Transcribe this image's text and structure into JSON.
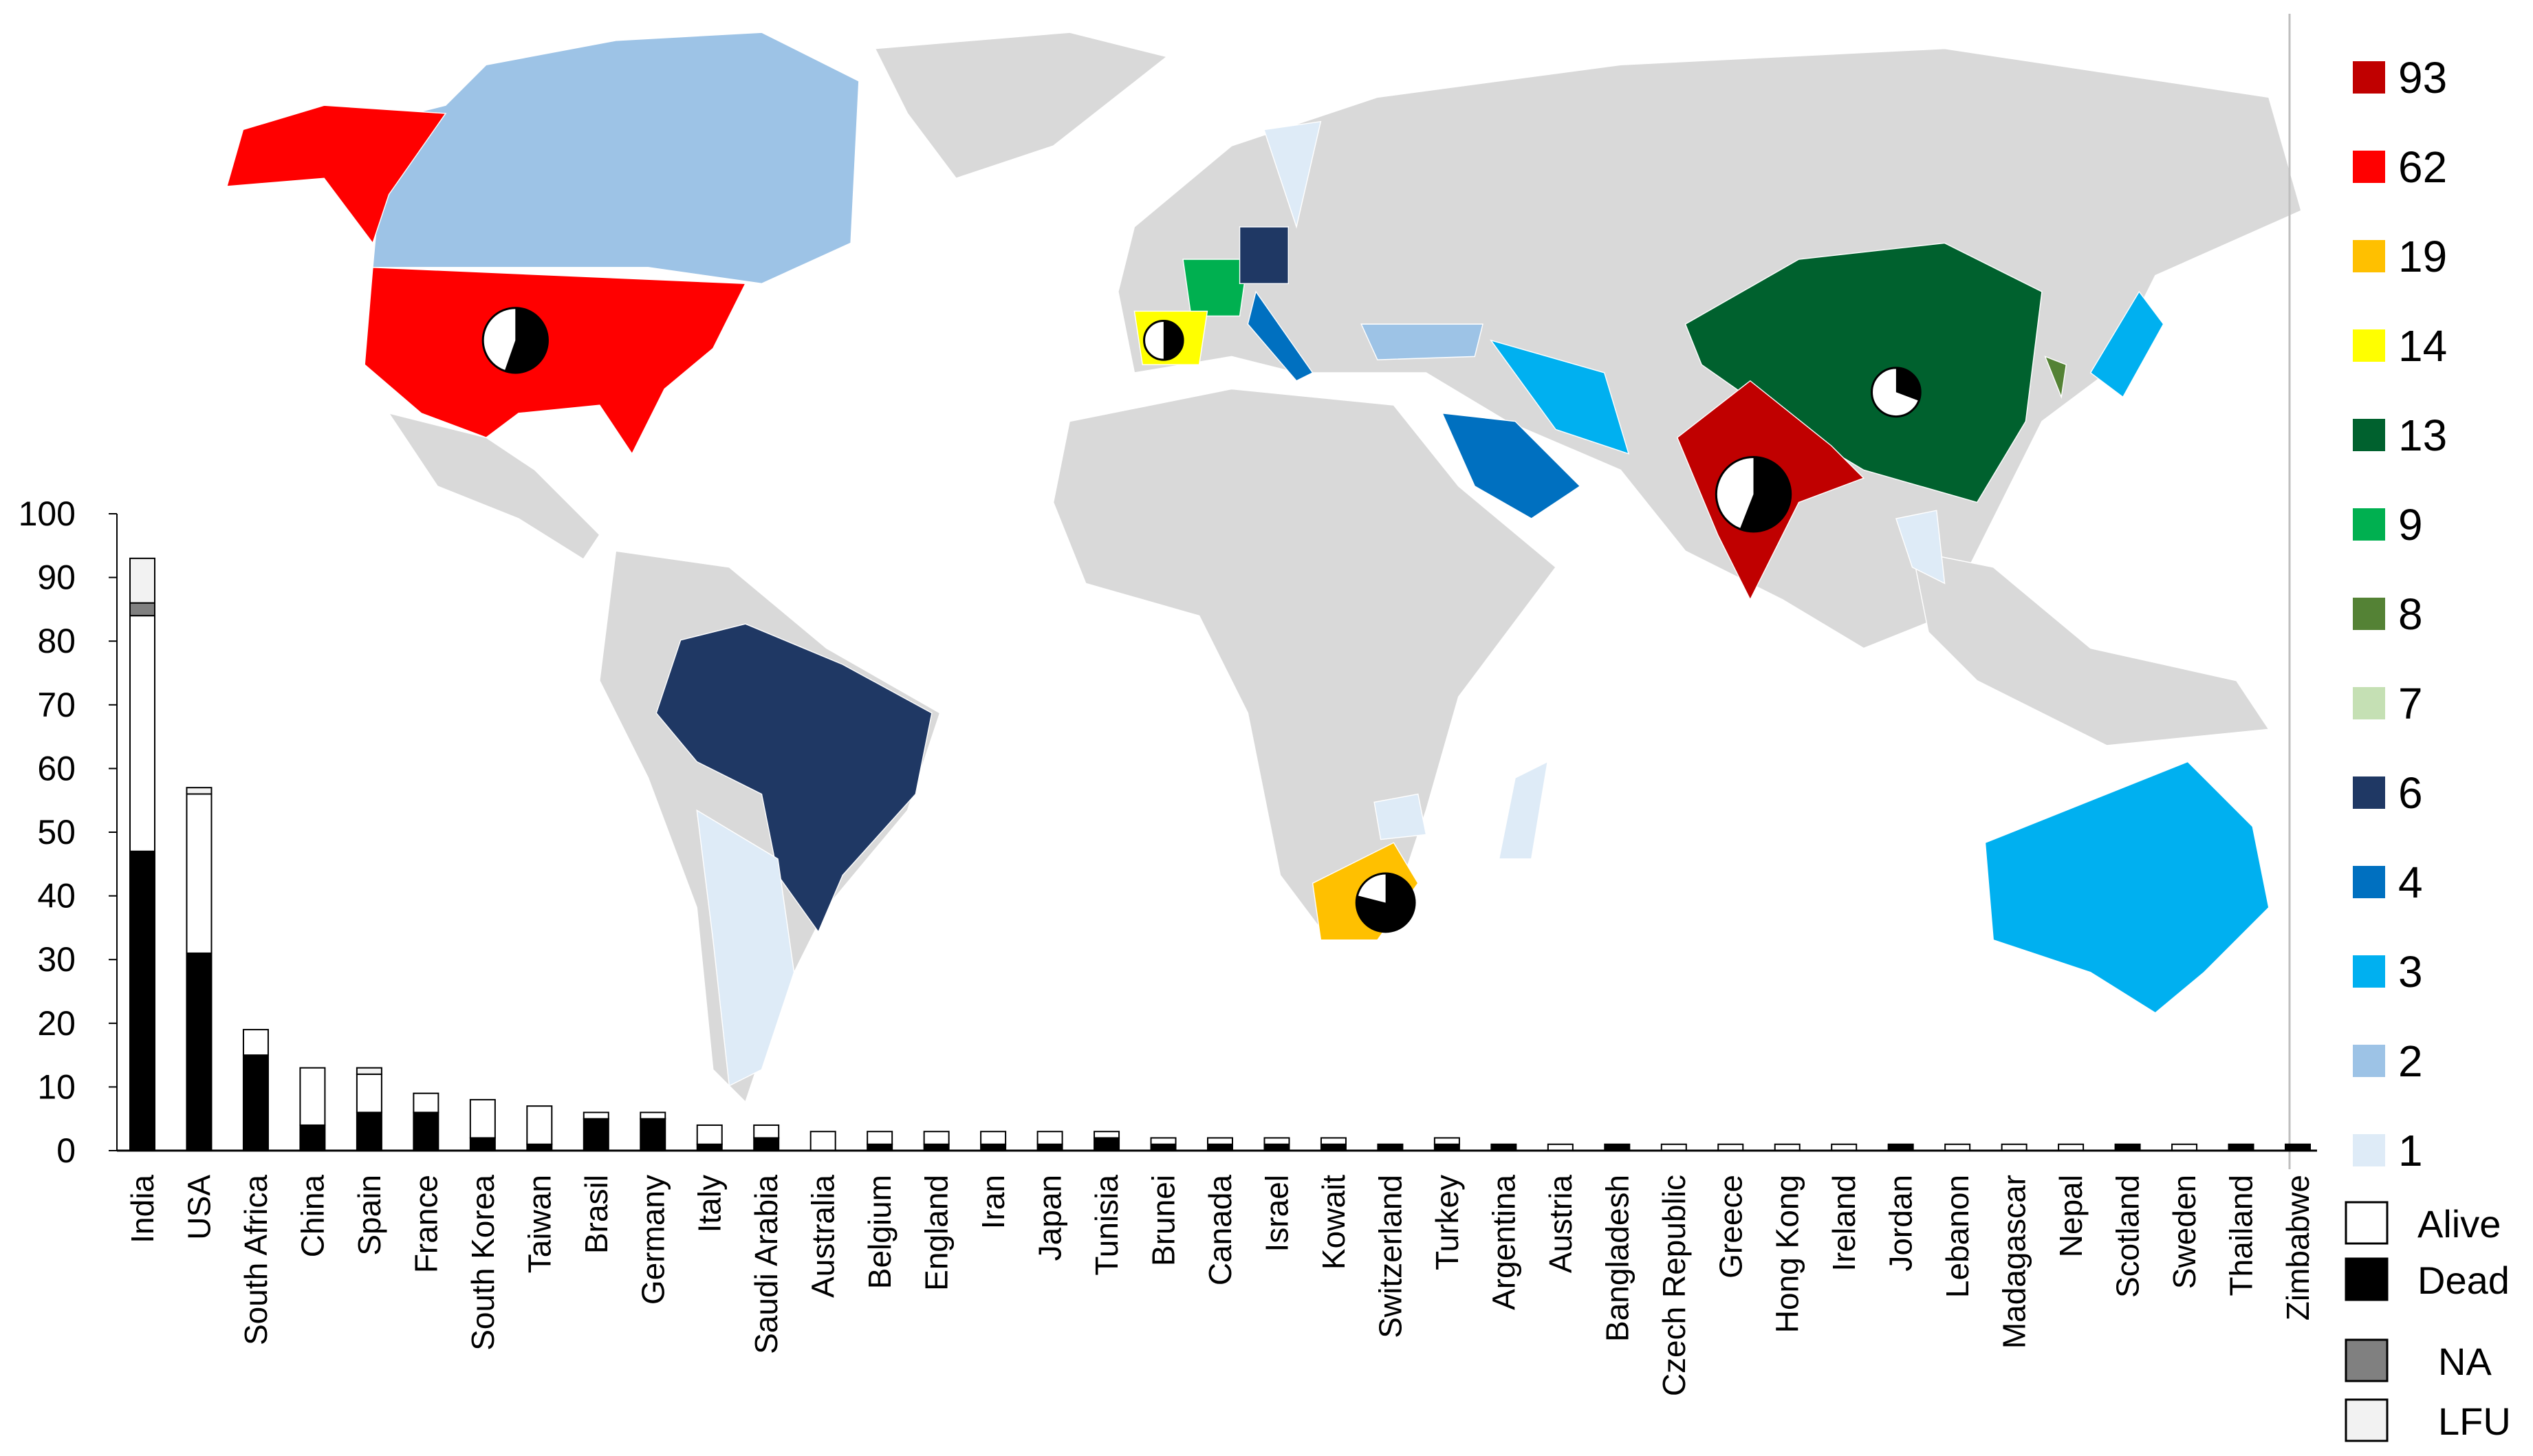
{
  "chart_data": {
    "type": "bar",
    "categories": [
      "India",
      "USA",
      "South Africa",
      "China",
      "Spain",
      "France",
      "South Korea",
      "Taiwan",
      "Brasil",
      "Germany",
      "Italy",
      "Saudi Arabia",
      "Australia",
      "Belgium",
      "England",
      "Iran",
      "Japan",
      "Tunisia",
      "Brunei",
      "Canada",
      "Israel",
      "Kowait",
      "Switzerland",
      "Turkey",
      "Argentina",
      "Austria",
      "Bangladesh",
      "Czech Republic",
      "Greece",
      "Hong Kong",
      "Ireland",
      "Jordan",
      "Lebanon",
      "Madagascar",
      "Nepal",
      "Scotland",
      "Sweden",
      "Thailand",
      "Zimbabwe"
    ],
    "series": [
      {
        "name": "Alive",
        "color": "#ffffff",
        "values": [
          37,
          25,
          4,
          9,
          6,
          3,
          6,
          6,
          1,
          1,
          3,
          2,
          3,
          2,
          2,
          2,
          2,
          1,
          1,
          1,
          1,
          1,
          0,
          1,
          0,
          1,
          0,
          1,
          1,
          1,
          1,
          0,
          1,
          1,
          1,
          0,
          1,
          0,
          0
        ]
      },
      {
        "name": "Dead",
        "color": "#000000",
        "values": [
          47,
          31,
          15,
          4,
          6,
          6,
          2,
          1,
          5,
          5,
          1,
          2,
          0,
          1,
          1,
          1,
          1,
          2,
          1,
          1,
          1,
          1,
          1,
          1,
          1,
          0,
          1,
          0,
          0,
          0,
          0,
          1,
          0,
          0,
          0,
          1,
          0,
          1,
          1
        ]
      },
      {
        "name": "NA",
        "color": "#808080",
        "values": [
          2,
          0,
          0,
          0,
          0,
          0,
          0,
          0,
          0,
          0,
          0,
          0,
          0,
          0,
          0,
          0,
          0,
          0,
          0,
          0,
          0,
          0,
          0,
          0,
          0,
          0,
          0,
          0,
          0,
          0,
          0,
          0,
          0,
          0,
          0,
          0,
          0,
          0,
          0
        ]
      },
      {
        "name": "LFU",
        "color": "#f2f2f2",
        "values": [
          7,
          1,
          0,
          0,
          1,
          0,
          0,
          0,
          0,
          0,
          0,
          0,
          0,
          0,
          0,
          0,
          0,
          0,
          0,
          0,
          0,
          0,
          0,
          0,
          0,
          0,
          0,
          0,
          0,
          0,
          0,
          0,
          0,
          0,
          0,
          0,
          0,
          0,
          0
        ]
      }
    ],
    "ylim": [
      0,
      100
    ],
    "yticks": [
      0,
      10,
      20,
      30,
      40,
      50,
      60,
      70,
      80,
      90,
      100
    ],
    "grid": false
  },
  "map_legend": {
    "labels": [
      93,
      62,
      19,
      14,
      13,
      9,
      8,
      7,
      6,
      4,
      3,
      2,
      1
    ],
    "colors": [
      "#c00000",
      "#ff0000",
      "#ffc000",
      "#ffff00",
      "#00612e",
      "#00b050",
      "#548235",
      "#c5e0b4",
      "#1f3864",
      "#0070c0",
      "#00b0f0",
      "#9dc3e6",
      "#deebf7"
    ],
    "land_color": "#d9d9d9"
  }
}
